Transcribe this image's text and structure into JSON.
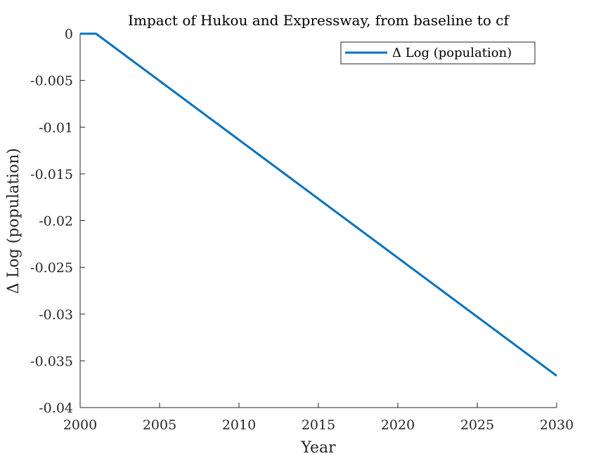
{
  "chart_data": {
    "type": "line",
    "title": "Impact of Hukou and Expressway, from baseline to cf",
    "xlabel": "Year",
    "ylabel": "Δ Log (population)",
    "xlim": [
      2000,
      2030
    ],
    "ylim": [
      -0.04,
      0
    ],
    "x_ticks": [
      2000,
      2005,
      2010,
      2015,
      2020,
      2025,
      2030
    ],
    "x_tick_labels": [
      "2000",
      "2005",
      "2010",
      "2015",
      "2020",
      "2025",
      "2030"
    ],
    "y_ticks": [
      0,
      -0.005,
      -0.01,
      -0.015,
      -0.02,
      -0.025,
      -0.03,
      -0.035,
      -0.04
    ],
    "y_tick_labels": [
      "0",
      "-0.005",
      "-0.01",
      "-0.015",
      "-0.02",
      "-0.025",
      "-0.03",
      "-0.035",
      "-0.04"
    ],
    "grid": false,
    "legend_position": "top-right",
    "series": [
      {
        "name": "Δ Log (population)",
        "color": "#0072BD",
        "x": [
          2000,
          2001,
          2030
        ],
        "y": [
          0,
          0,
          -0.0366
        ]
      }
    ]
  }
}
